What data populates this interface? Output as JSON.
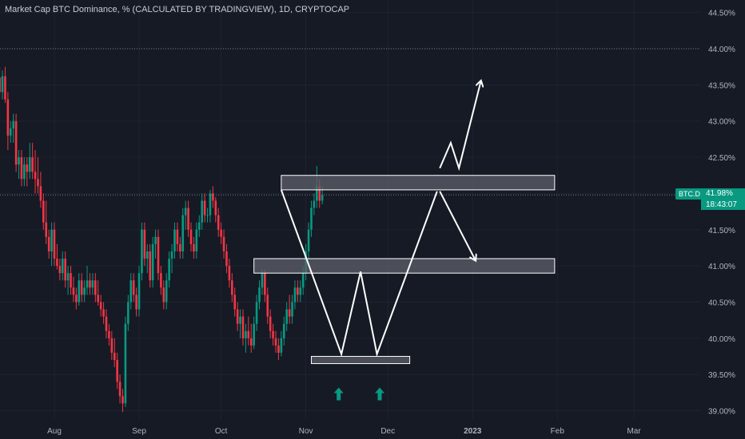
{
  "header": {
    "title": "Market Cap BTC Dominance, % (CALCULATED BY TRADINGVIEW), 1D, CRYPTOCAP"
  },
  "colors": {
    "background": "#161a25",
    "up": "#089981",
    "down": "#f23645",
    "grid": "#1f2330",
    "axis_text": "#b2b5be",
    "drawing": "#ffffff",
    "zone_fill": "#5d606b",
    "badge": "#089981"
  },
  "current": {
    "symbol": "BTC.D",
    "value": "41.98%",
    "countdown": "18:43:07"
  },
  "chart_data": {
    "type": "candlestick",
    "y_unit": "%",
    "ylim": [
      38.95,
      44.6
    ],
    "y_ticks": [
      "44.50%",
      "44.00%",
      "43.50%",
      "43.00%",
      "42.50%",
      "42.00%",
      "41.50%",
      "41.00%",
      "40.50%",
      "40.00%",
      "39.50%",
      "39.00%"
    ],
    "y_tick_values": [
      44.5,
      44.0,
      43.5,
      43.0,
      42.5,
      42.0,
      41.5,
      41.0,
      40.5,
      40.0,
      39.5,
      39.0
    ],
    "x_labels": [
      "Aug",
      "Sep",
      "Oct",
      "Nov",
      "Dec",
      "2023",
      "Feb",
      "Mar"
    ],
    "x_label_dates": [
      "2022-08-01",
      "2022-09-01",
      "2022-10-01",
      "2022-11-01",
      "2022-12-01",
      "2023-01-01",
      "2023-02-01",
      "2023-03-01"
    ],
    "start_date": "2022-07-10",
    "candles": [
      [
        43.98,
        44.05,
        43.6,
        43.7
      ],
      [
        43.7,
        43.85,
        43.5,
        43.6
      ],
      [
        43.6,
        43.75,
        43.3,
        43.4
      ],
      [
        43.4,
        43.7,
        43.3,
        43.62
      ],
      [
        43.62,
        43.75,
        43.25,
        43.3
      ],
      [
        43.3,
        43.4,
        42.6,
        42.8
      ],
      [
        42.8,
        43.0,
        42.7,
        42.9
      ],
      [
        42.9,
        43.1,
        42.7,
        43.0
      ],
      [
        43.0,
        43.1,
        42.3,
        42.4
      ],
      [
        42.4,
        42.6,
        42.2,
        42.5
      ],
      [
        42.5,
        42.6,
        42.1,
        42.2
      ],
      [
        42.2,
        42.5,
        42.1,
        42.4
      ],
      [
        42.4,
        42.5,
        42.1,
        42.3
      ],
      [
        42.3,
        42.7,
        42.2,
        42.5
      ],
      [
        42.5,
        42.7,
        42.2,
        42.3
      ],
      [
        42.3,
        42.6,
        42.0,
        42.2
      ],
      [
        42.2,
        42.5,
        42.0,
        42.1
      ],
      [
        42.1,
        42.3,
        41.8,
        41.9
      ],
      [
        41.9,
        42.0,
        41.5,
        41.6
      ],
      [
        41.6,
        41.9,
        41.3,
        41.4
      ],
      [
        41.4,
        41.5,
        41.1,
        41.2
      ],
      [
        41.2,
        41.6,
        41.0,
        41.5
      ],
      [
        41.5,
        41.6,
        41.0,
        41.1
      ],
      [
        41.1,
        41.3,
        40.95,
        41.0
      ],
      [
        41.0,
        41.1,
        40.8,
        40.9
      ],
      [
        40.9,
        41.2,
        40.8,
        41.1
      ],
      [
        41.1,
        41.2,
        40.7,
        40.8
      ],
      [
        40.8,
        41.0,
        40.6,
        40.9
      ],
      [
        40.9,
        41.0,
        40.6,
        40.7
      ],
      [
        40.7,
        40.85,
        40.5,
        40.6
      ],
      [
        40.6,
        40.7,
        40.4,
        40.5
      ],
      [
        40.5,
        40.9,
        40.45,
        40.8
      ],
      [
        40.8,
        40.9,
        40.5,
        40.6
      ],
      [
        40.6,
        40.8,
        40.5,
        40.7
      ],
      [
        40.7,
        41.0,
        40.6,
        40.8
      ],
      [
        40.8,
        40.9,
        40.6,
        40.7
      ],
      [
        40.7,
        40.9,
        40.6,
        40.8
      ],
      [
        40.8,
        40.9,
        40.5,
        40.6
      ],
      [
        40.6,
        40.8,
        40.45,
        40.5
      ],
      [
        40.5,
        40.6,
        40.3,
        40.4
      ],
      [
        40.4,
        40.5,
        40.2,
        40.3
      ],
      [
        40.3,
        40.4,
        40.0,
        40.1
      ],
      [
        40.1,
        40.2,
        39.9,
        40.0
      ],
      [
        40.0,
        40.1,
        39.7,
        39.8
      ],
      [
        39.8,
        40.0,
        39.6,
        39.7
      ],
      [
        39.7,
        39.8,
        39.3,
        39.4
      ],
      [
        39.4,
        39.5,
        39.1,
        39.2
      ],
      [
        39.2,
        39.3,
        38.98,
        39.1
      ],
      [
        39.1,
        40.3,
        39.05,
        40.2
      ],
      [
        40.2,
        40.6,
        40.1,
        40.5
      ],
      [
        40.5,
        40.9,
        40.4,
        40.8
      ],
      [
        40.8,
        40.9,
        40.5,
        40.6
      ],
      [
        40.6,
        40.7,
        40.3,
        40.4
      ],
      [
        40.4,
        41.0,
        40.3,
        40.9
      ],
      [
        40.9,
        41.6,
        40.8,
        41.5
      ],
      [
        41.5,
        41.6,
        41.0,
        41.1
      ],
      [
        41.1,
        41.3,
        40.9,
        41.2
      ],
      [
        41.2,
        41.3,
        40.7,
        40.8
      ],
      [
        40.8,
        41.4,
        40.7,
        41.3
      ],
      [
        41.3,
        41.5,
        41.1,
        41.4
      ],
      [
        41.4,
        41.5,
        40.8,
        40.9
      ],
      [
        40.9,
        41.0,
        40.6,
        40.7
      ],
      [
        40.7,
        40.8,
        40.4,
        40.5
      ],
      [
        40.5,
        40.9,
        40.4,
        40.8
      ],
      [
        40.8,
        41.2,
        40.7,
        41.1
      ],
      [
        41.1,
        41.3,
        40.9,
        41.2
      ],
      [
        41.2,
        41.6,
        41.1,
        41.5
      ],
      [
        41.5,
        41.6,
        41.2,
        41.3
      ],
      [
        41.3,
        41.4,
        41.1,
        41.2
      ],
      [
        41.2,
        41.8,
        41.1,
        41.7
      ],
      [
        41.7,
        41.9,
        41.5,
        41.8
      ],
      [
        41.8,
        41.9,
        41.4,
        41.5
      ],
      [
        41.5,
        41.6,
        41.2,
        41.3
      ],
      [
        41.3,
        41.4,
        41.1,
        41.2
      ],
      [
        41.2,
        41.6,
        41.1,
        41.5
      ],
      [
        41.5,
        41.7,
        41.4,
        41.6
      ],
      [
        41.6,
        42.0,
        41.5,
        41.9
      ],
      [
        41.9,
        42.0,
        41.6,
        41.7
      ],
      [
        41.7,
        41.8,
        41.6,
        41.7
      ],
      [
        41.7,
        42.05,
        41.6,
        42.0
      ],
      [
        42.0,
        42.1,
        41.8,
        41.9
      ],
      [
        41.9,
        41.95,
        41.6,
        41.7
      ],
      [
        41.7,
        41.8,
        41.4,
        41.5
      ],
      [
        41.5,
        41.6,
        41.3,
        41.4
      ],
      [
        41.4,
        41.5,
        41.1,
        41.2
      ],
      [
        41.2,
        41.3,
        40.9,
        41.0
      ],
      [
        41.0,
        41.1,
        40.7,
        40.8
      ],
      [
        40.8,
        40.9,
        40.5,
        40.6
      ],
      [
        40.6,
        40.7,
        40.3,
        40.4
      ],
      [
        40.4,
        40.5,
        40.1,
        40.2
      ],
      [
        40.2,
        40.4,
        40.0,
        40.3
      ],
      [
        40.3,
        40.4,
        39.9,
        40.0
      ],
      [
        40.0,
        40.2,
        39.8,
        40.1
      ],
      [
        40.1,
        40.3,
        39.9,
        40.0
      ],
      [
        40.0,
        40.2,
        39.8,
        39.9
      ],
      [
        39.9,
        40.3,
        39.85,
        40.2
      ],
      [
        40.2,
        40.6,
        40.1,
        40.5
      ],
      [
        40.5,
        40.8,
        40.4,
        40.7
      ],
      [
        40.7,
        40.95,
        40.6,
        40.9
      ],
      [
        40.9,
        40.95,
        40.5,
        40.6
      ],
      [
        40.6,
        40.7,
        40.2,
        40.3
      ],
      [
        40.3,
        40.4,
        40.0,
        40.1
      ],
      [
        40.1,
        40.2,
        39.9,
        40.0
      ],
      [
        40.0,
        40.1,
        39.8,
        39.9
      ],
      [
        39.9,
        40.0,
        39.7,
        39.8
      ],
      [
        39.8,
        40.1,
        39.75,
        40.0
      ],
      [
        40.0,
        40.3,
        39.9,
        40.2
      ],
      [
        40.2,
        40.5,
        40.1,
        40.4
      ],
      [
        40.4,
        40.6,
        40.2,
        40.3
      ],
      [
        40.3,
        40.6,
        40.2,
        40.5
      ],
      [
        40.5,
        40.8,
        40.4,
        40.7
      ],
      [
        40.7,
        40.8,
        40.5,
        40.6
      ],
      [
        40.6,
        40.8,
        40.5,
        40.7
      ],
      [
        40.7,
        41.0,
        40.6,
        40.9
      ],
      [
        40.9,
        41.3,
        40.8,
        41.2
      ],
      [
        41.2,
        41.6,
        41.1,
        41.5
      ],
      [
        41.5,
        41.9,
        41.4,
        41.8
      ],
      [
        41.8,
        42.0,
        41.7,
        41.9
      ],
      [
        41.9,
        42.38,
        41.8,
        42.1
      ],
      [
        42.1,
        42.2,
        41.8,
        41.9
      ],
      [
        41.9,
        42.1,
        41.85,
        41.98
      ]
    ]
  },
  "drawings": {
    "zones": [
      {
        "name": "resistance-zone",
        "start": "2022-10-23",
        "end": "2023-01-31",
        "low": 42.05,
        "high": 42.25
      },
      {
        "name": "mid-zone",
        "start": "2022-10-13",
        "end": "2023-01-31",
        "low": 40.9,
        "high": 41.1
      },
      {
        "name": "support-zone",
        "start": "2022-11-03",
        "end": "2022-12-09",
        "low": 39.65,
        "high": 39.75
      }
    ],
    "w_pattern": [
      [
        "2022-10-23",
        42.05
      ],
      [
        "2022-11-14",
        39.78
      ],
      [
        "2022-11-21",
        40.92
      ],
      [
        "2022-11-27",
        39.78
      ],
      [
        "2022-12-19",
        42.03
      ]
    ],
    "path_up": [
      [
        "2022-12-20",
        42.35
      ],
      [
        "2022-12-24",
        42.7
      ],
      [
        "2022-12-27",
        42.35
      ],
      [
        "2023-01-04",
        43.55
      ]
    ],
    "path_down": [
      [
        "2022-12-20",
        42.03
      ],
      [
        "2023-01-02",
        41.08
      ]
    ],
    "markers": [
      {
        "name": "up-marker-1",
        "date": "2022-11-13",
        "value": 39.32
      },
      {
        "name": "up-marker-2",
        "date": "2022-11-28",
        "value": 39.32
      }
    ]
  }
}
